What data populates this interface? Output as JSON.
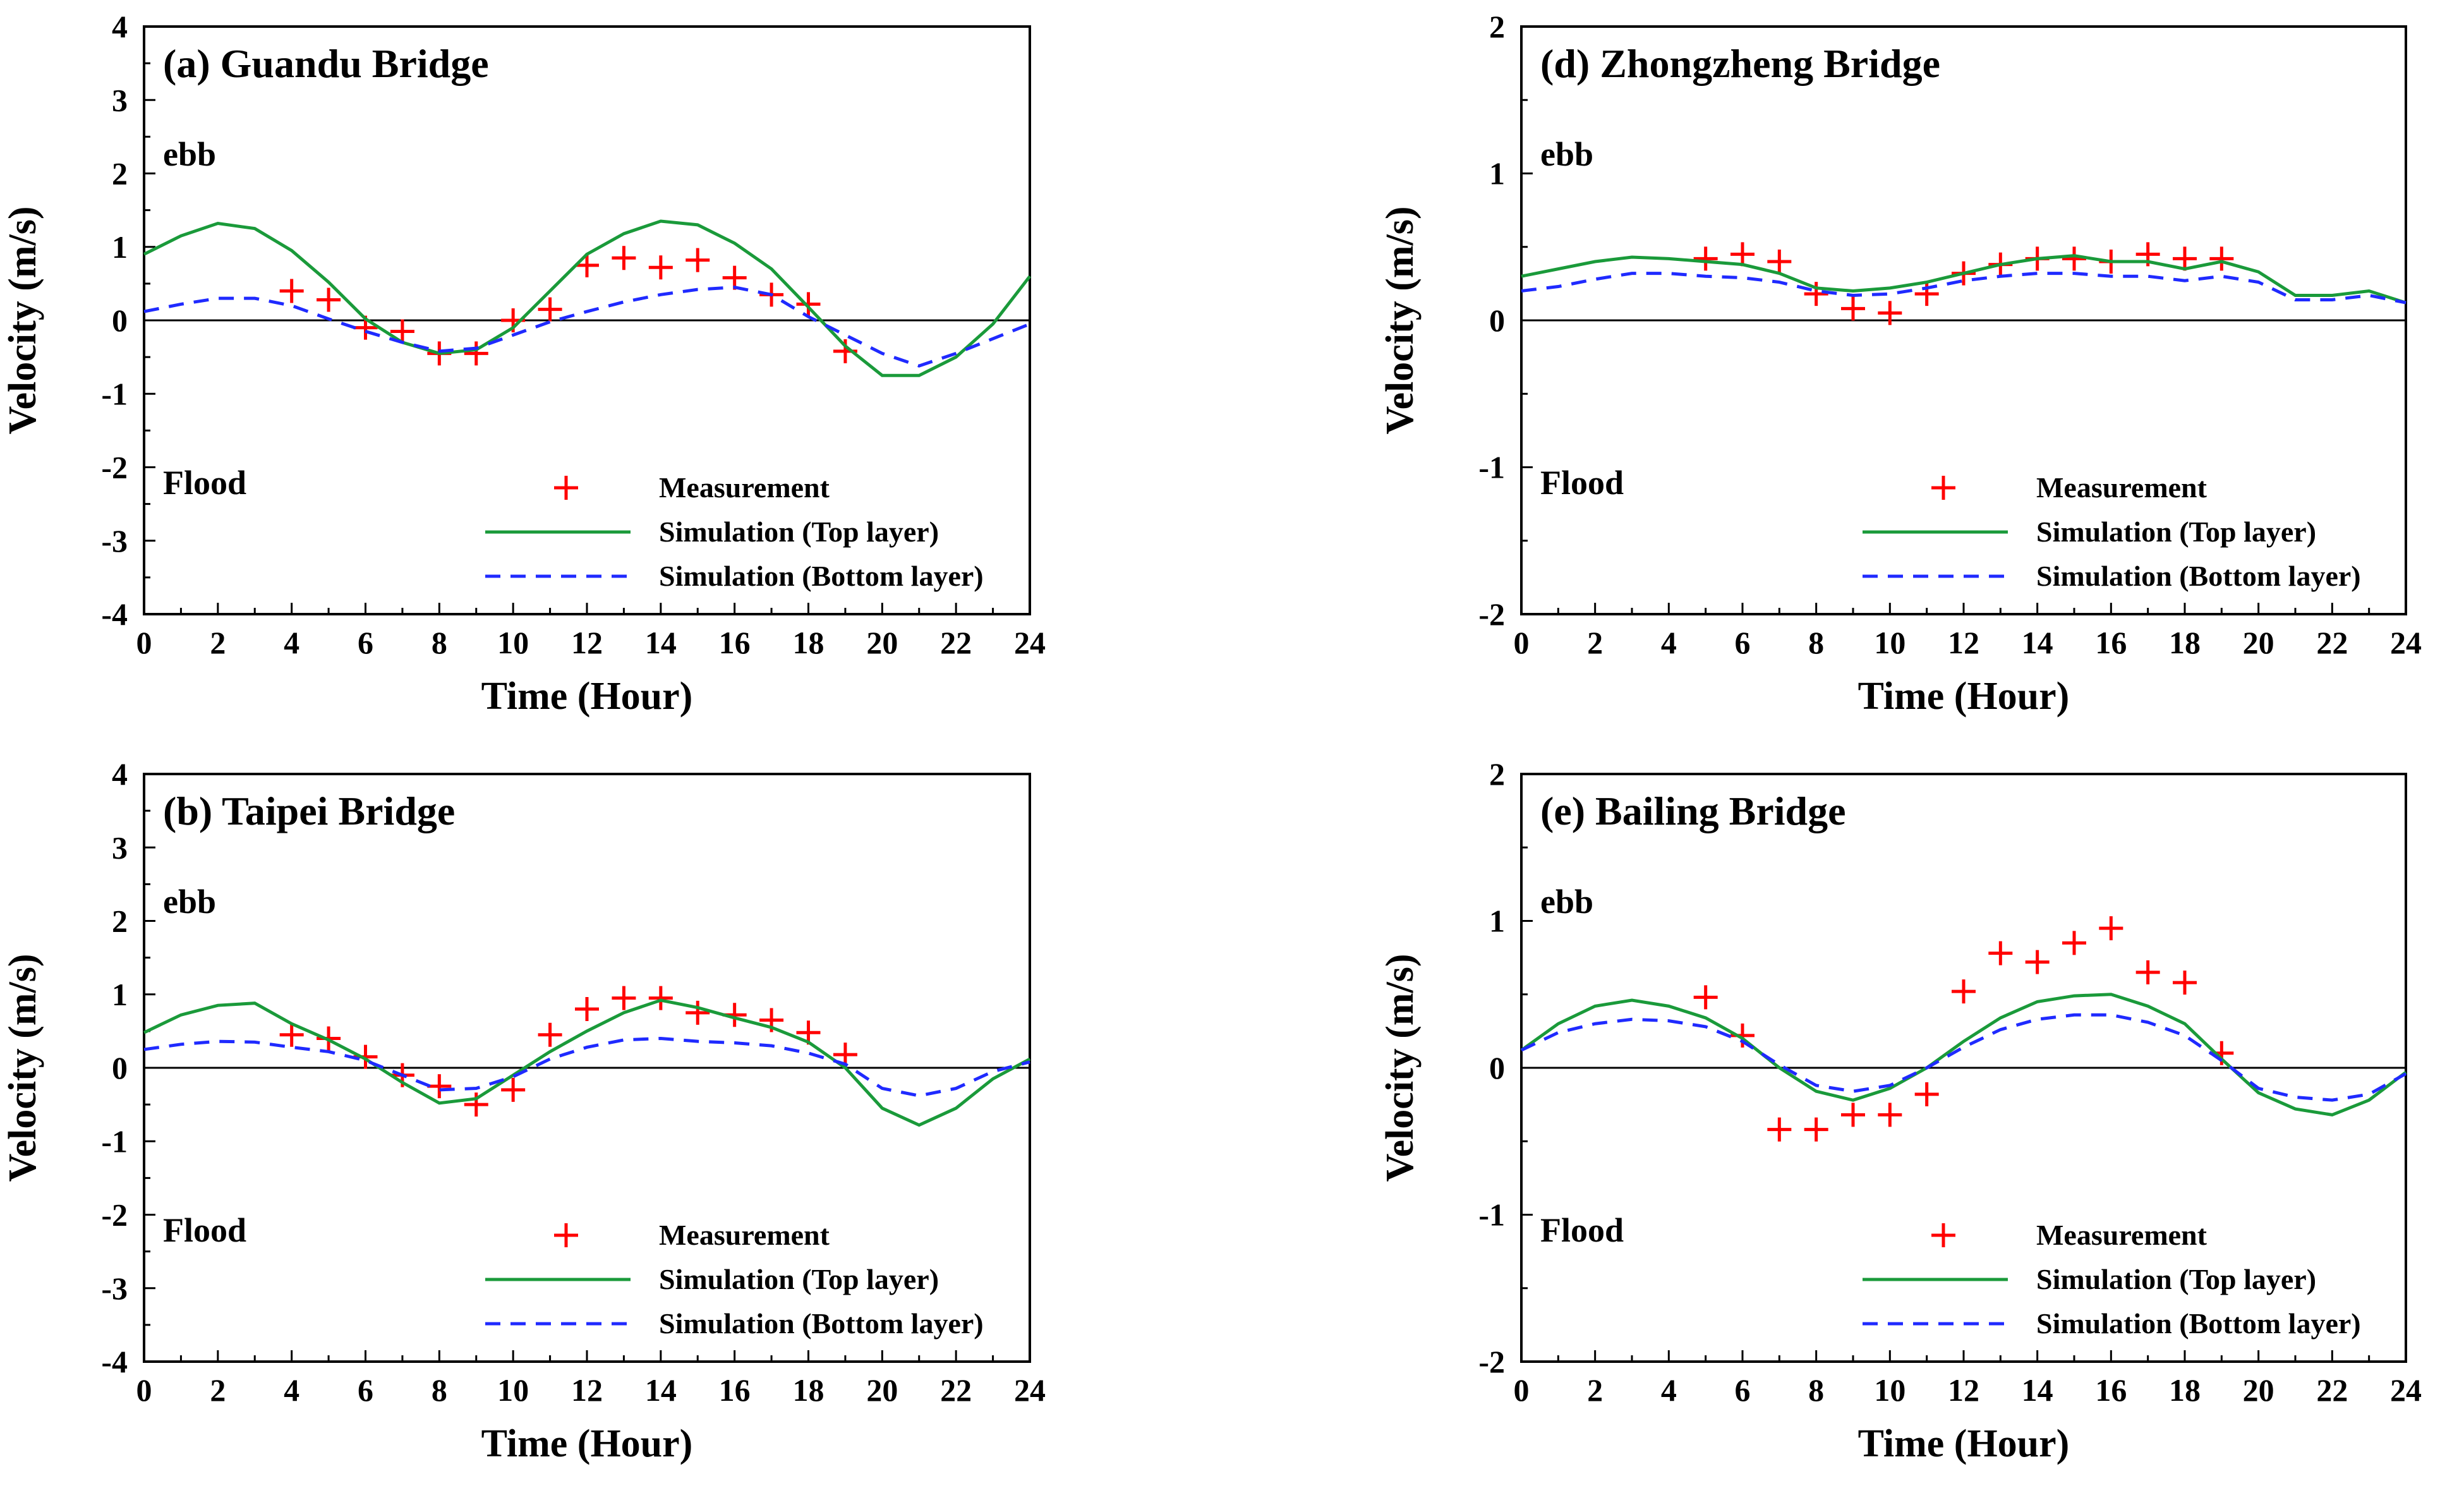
{
  "figure": {
    "colors": {
      "measurement": "#ff0000",
      "top_layer": "#1a9a3a",
      "bottom_layer": "#1f2aff",
      "axis": "#000000"
    }
  },
  "chart_data": [
    {
      "id": "a",
      "type": "line",
      "title": "(a) Guandu Bridge",
      "xlabel": "Time (Hour)",
      "ylabel": "Velocity (m/s)",
      "xlim": [
        0,
        24
      ],
      "ylim": [
        -4,
        4
      ],
      "x_ticks": [
        "0",
        "2",
        "4",
        "6",
        "8",
        "10",
        "12",
        "14",
        "16",
        "18",
        "20",
        "22",
        "24"
      ],
      "y_ticks": [
        "4",
        "3",
        "2",
        "1",
        "0",
        "-1",
        "-2",
        "-3",
        "-4"
      ],
      "annotations": {
        "ebb": "ebb",
        "flood": "Flood"
      },
      "legend": [
        "Measurement",
        "Simulation (Top layer)",
        "Simulation (Bottom layer)"
      ],
      "series": [
        {
          "name": "Measurement",
          "kind": "marker",
          "x": [
            4,
            5,
            6,
            7,
            8,
            9,
            10,
            11,
            12,
            13,
            14,
            15,
            16,
            17,
            18,
            19
          ],
          "y": [
            0.4,
            0.28,
            -0.1,
            -0.15,
            -0.45,
            -0.45,
            0.0,
            0.15,
            0.75,
            0.85,
            0.72,
            0.82,
            0.58,
            0.35,
            0.22,
            -0.42
          ]
        },
        {
          "name": "Simulation (Top layer)",
          "kind": "solid",
          "x": [
            0,
            1,
            2,
            3,
            4,
            5,
            6,
            7,
            8,
            9,
            10,
            11,
            12,
            13,
            14,
            15,
            16,
            17,
            18,
            19,
            20,
            21,
            22,
            23,
            24
          ],
          "y": [
            0.9,
            1.15,
            1.32,
            1.25,
            0.95,
            0.52,
            0.02,
            -0.3,
            -0.45,
            -0.4,
            -0.1,
            0.4,
            0.9,
            1.18,
            1.35,
            1.3,
            1.05,
            0.7,
            0.18,
            -0.35,
            -0.75,
            -0.75,
            -0.5,
            -0.05,
            0.6
          ]
        },
        {
          "name": "Simulation (Bottom layer)",
          "kind": "dashed",
          "x": [
            0,
            1,
            2,
            3,
            4,
            5,
            6,
            7,
            8,
            9,
            10,
            11,
            12,
            13,
            14,
            15,
            16,
            17,
            18,
            19,
            20,
            21,
            22,
            23,
            24
          ],
          "y": [
            0.12,
            0.22,
            0.3,
            0.3,
            0.2,
            0.02,
            -0.15,
            -0.3,
            -0.42,
            -0.38,
            -0.2,
            -0.02,
            0.12,
            0.25,
            0.35,
            0.42,
            0.45,
            0.35,
            0.05,
            -0.2,
            -0.45,
            -0.62,
            -0.45,
            -0.25,
            -0.05
          ]
        }
      ]
    },
    {
      "id": "b",
      "type": "line",
      "title": "(b) Taipei Bridge",
      "xlabel": "Time (Hour)",
      "ylabel": "Velocity (m/s)",
      "xlim": [
        0,
        24
      ],
      "ylim": [
        -4,
        4
      ],
      "x_ticks": [
        "0",
        "2",
        "4",
        "6",
        "8",
        "10",
        "12",
        "14",
        "16",
        "18",
        "20",
        "22",
        "24"
      ],
      "y_ticks": [
        "4",
        "3",
        "2",
        "1",
        "0",
        "-1",
        "-2",
        "-3",
        "-4"
      ],
      "annotations": {
        "ebb": "ebb",
        "flood": "Flood"
      },
      "legend": [
        "Measurement",
        "Simulation (Top layer)",
        "Simulation (Bottom layer)"
      ],
      "series": [
        {
          "name": "Measurement",
          "kind": "marker",
          "x": [
            4,
            5,
            6,
            7,
            8,
            9,
            10,
            11,
            12,
            13,
            14,
            15,
            16,
            17,
            18,
            19
          ],
          "y": [
            0.45,
            0.4,
            0.15,
            -0.1,
            -0.25,
            -0.5,
            -0.3,
            0.45,
            0.8,
            0.95,
            0.95,
            0.75,
            0.72,
            0.65,
            0.48,
            0.18
          ]
        },
        {
          "name": "Simulation (Top layer)",
          "kind": "solid",
          "x": [
            0,
            1,
            2,
            3,
            4,
            5,
            6,
            7,
            8,
            9,
            10,
            11,
            12,
            13,
            14,
            15,
            16,
            17,
            18,
            19,
            20,
            21,
            22,
            23,
            24
          ],
          "y": [
            0.48,
            0.72,
            0.85,
            0.88,
            0.6,
            0.38,
            0.12,
            -0.2,
            -0.48,
            -0.42,
            -0.1,
            0.22,
            0.5,
            0.75,
            0.92,
            0.82,
            0.68,
            0.55,
            0.35,
            0.0,
            -0.55,
            -0.78,
            -0.55,
            -0.15,
            0.12
          ]
        },
        {
          "name": "Simulation (Bottom layer)",
          "kind": "dashed",
          "x": [
            0,
            1,
            2,
            3,
            4,
            5,
            6,
            7,
            8,
            9,
            10,
            11,
            12,
            13,
            14,
            15,
            16,
            17,
            18,
            19,
            20,
            21,
            22,
            23,
            24
          ],
          "y": [
            0.25,
            0.32,
            0.36,
            0.35,
            0.28,
            0.22,
            0.1,
            -0.1,
            -0.3,
            -0.28,
            -0.12,
            0.12,
            0.28,
            0.38,
            0.4,
            0.36,
            0.34,
            0.3,
            0.2,
            0.05,
            -0.28,
            -0.38,
            -0.28,
            -0.05,
            0.08
          ]
        }
      ]
    },
    {
      "id": "d",
      "type": "line",
      "title": "(d) Zhongzheng Bridge",
      "xlabel": "Time (Hour)",
      "ylabel": "Velocity (m/s)",
      "xlim": [
        0,
        24
      ],
      "ylim": [
        -2,
        2
      ],
      "x_ticks": [
        "0",
        "2",
        "4",
        "6",
        "8",
        "10",
        "12",
        "14",
        "16",
        "18",
        "20",
        "22",
        "24"
      ],
      "y_ticks": [
        "2",
        "1",
        "0",
        "-1",
        "-2"
      ],
      "annotations": {
        "ebb": "ebb",
        "flood": "Flood"
      },
      "legend": [
        "Measurement",
        "Simulation (Top layer)",
        "Simulation (Bottom layer)"
      ],
      "series": [
        {
          "name": "Measurement",
          "kind": "marker",
          "x": [
            5,
            6,
            7,
            8,
            9,
            10,
            11,
            12,
            13,
            14,
            15,
            16,
            17,
            18,
            19
          ],
          "y": [
            0.42,
            0.45,
            0.4,
            0.18,
            0.08,
            0.05,
            0.18,
            0.32,
            0.38,
            0.42,
            0.42,
            0.4,
            0.45,
            0.42,
            0.42
          ]
        },
        {
          "name": "Simulation (Top layer)",
          "kind": "solid",
          "x": [
            0,
            1,
            2,
            3,
            4,
            5,
            6,
            7,
            8,
            9,
            10,
            11,
            12,
            13,
            14,
            15,
            16,
            17,
            18,
            19,
            20,
            21,
            22,
            23,
            24
          ],
          "y": [
            0.3,
            0.35,
            0.4,
            0.43,
            0.42,
            0.4,
            0.38,
            0.32,
            0.22,
            0.2,
            0.22,
            0.26,
            0.32,
            0.38,
            0.42,
            0.44,
            0.4,
            0.4,
            0.35,
            0.4,
            0.33,
            0.17,
            0.17,
            0.2,
            0.12
          ]
        },
        {
          "name": "Simulation (Bottom layer)",
          "kind": "dashed",
          "x": [
            0,
            1,
            2,
            3,
            4,
            5,
            6,
            7,
            8,
            9,
            10,
            11,
            12,
            13,
            14,
            15,
            16,
            17,
            18,
            19,
            20,
            21,
            22,
            23,
            24
          ],
          "y": [
            0.2,
            0.23,
            0.28,
            0.32,
            0.32,
            0.3,
            0.29,
            0.26,
            0.2,
            0.17,
            0.18,
            0.22,
            0.27,
            0.3,
            0.32,
            0.32,
            0.3,
            0.3,
            0.27,
            0.3,
            0.26,
            0.14,
            0.14,
            0.17,
            0.12
          ]
        }
      ]
    },
    {
      "id": "e",
      "type": "line",
      "title": "(e) Bailing Bridge",
      "xlabel": "Time (Hour)",
      "ylabel": "Velocity (m/s)",
      "xlim": [
        0,
        24
      ],
      "ylim": [
        -2,
        2
      ],
      "x_ticks": [
        "0",
        "2",
        "4",
        "6",
        "8",
        "10",
        "12",
        "14",
        "16",
        "18",
        "20",
        "22",
        "24"
      ],
      "y_ticks": [
        "2",
        "1",
        "0",
        "-1",
        "-2"
      ],
      "annotations": {
        "ebb": "ebb",
        "flood": "Flood"
      },
      "legend": [
        "Measurement",
        "Simulation (Top layer)",
        "Simulation (Bottom layer)"
      ],
      "series": [
        {
          "name": "Measurement",
          "kind": "marker",
          "x": [
            5,
            6,
            7,
            8,
            9,
            10,
            11,
            12,
            13,
            14,
            15,
            16,
            17,
            18,
            19
          ],
          "y": [
            0.48,
            0.22,
            -0.42,
            -0.42,
            -0.32,
            -0.32,
            -0.18,
            0.52,
            0.78,
            0.72,
            0.85,
            0.95,
            0.65,
            0.58,
            0.1
          ]
        },
        {
          "name": "Simulation (Top layer)",
          "kind": "solid",
          "x": [
            0,
            1,
            2,
            3,
            4,
            5,
            6,
            7,
            8,
            9,
            10,
            11,
            12,
            13,
            14,
            15,
            16,
            17,
            18,
            19,
            20,
            21,
            22,
            23,
            24
          ],
          "y": [
            0.12,
            0.3,
            0.42,
            0.46,
            0.42,
            0.34,
            0.2,
            0.0,
            -0.16,
            -0.22,
            -0.14,
            0.0,
            0.18,
            0.34,
            0.45,
            0.49,
            0.5,
            0.42,
            0.3,
            0.06,
            -0.17,
            -0.28,
            -0.32,
            -0.22,
            -0.03
          ]
        },
        {
          "name": "Simulation (Bottom layer)",
          "kind": "dashed",
          "x": [
            0,
            1,
            2,
            3,
            4,
            5,
            6,
            7,
            8,
            9,
            10,
            11,
            12,
            13,
            14,
            15,
            16,
            17,
            18,
            19,
            20,
            21,
            22,
            23,
            24
          ],
          "y": [
            0.12,
            0.24,
            0.3,
            0.33,
            0.32,
            0.28,
            0.18,
            0.02,
            -0.12,
            -0.16,
            -0.12,
            0.0,
            0.14,
            0.26,
            0.33,
            0.36,
            0.36,
            0.31,
            0.22,
            0.05,
            -0.14,
            -0.2,
            -0.22,
            -0.18,
            -0.04
          ]
        }
      ]
    }
  ]
}
